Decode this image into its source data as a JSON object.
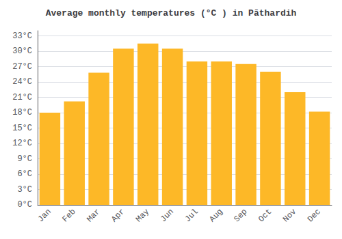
{
  "chart_data": {
    "type": "bar",
    "title": "Average monthly temperatures (°C ) in Pāthardih",
    "categories": [
      "Jan",
      "Feb",
      "Mar",
      "Apr",
      "May",
      "Jun",
      "Jul",
      "Aug",
      "Sep",
      "Oct",
      "Nov",
      "Dec"
    ],
    "values": [
      18.0,
      20.2,
      25.8,
      30.5,
      31.5,
      30.5,
      28.0,
      28.0,
      27.5,
      26.0,
      22.0,
      18.2
    ],
    "color": "#FDB827",
    "ylim": [
      0,
      34
    ],
    "yticks": [
      {
        "value": 0,
        "label": "0°C"
      },
      {
        "value": 3,
        "label": "3°C"
      },
      {
        "value": 6,
        "label": "6°C"
      },
      {
        "value": 9,
        "label": "9°C"
      },
      {
        "value": 12,
        "label": "12°C"
      },
      {
        "value": 15,
        "label": "15°C"
      },
      {
        "value": 18,
        "label": "18°C"
      },
      {
        "value": 21,
        "label": "21°C"
      },
      {
        "value": 24,
        "label": "24°C"
      },
      {
        "value": 27,
        "label": "27°C"
      },
      {
        "value": 30,
        "label": "30°C"
      },
      {
        "value": 33,
        "label": "33°C"
      }
    ],
    "grid": true
  }
}
